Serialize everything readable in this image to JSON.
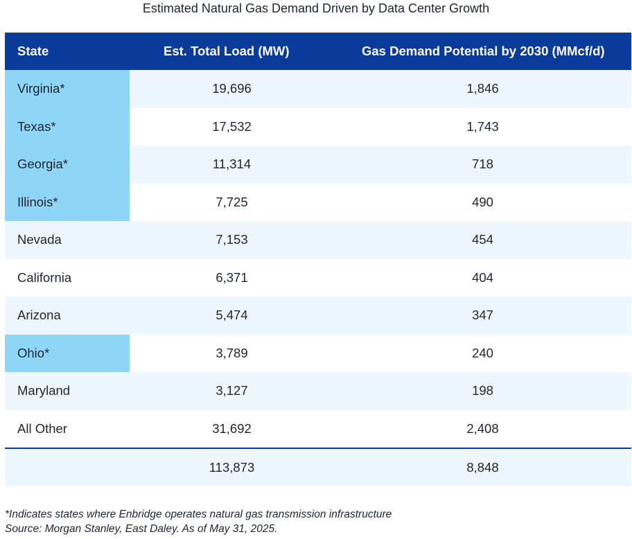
{
  "chart_data": {
    "type": "table",
    "title": "Estimated Natural Gas Demand Driven by Data Center Growth",
    "columns": [
      "State",
      "Est. Total Load (MW)",
      "Gas Demand Potential by 2030 (MMcf/d)"
    ],
    "rows": [
      {
        "state": "Virginia*",
        "load": "19,696",
        "gas": "1,846",
        "highlight": true
      },
      {
        "state": "Texas*",
        "load": "17,532",
        "gas": "1,743",
        "highlight": true
      },
      {
        "state": "Georgia*",
        "load": "11,314",
        "gas": "718",
        "highlight": true
      },
      {
        "state": "Illinois*",
        "load": "7,725",
        "gas": "490",
        "highlight": true
      },
      {
        "state": "Nevada",
        "load": "7,153",
        "gas": "454",
        "highlight": false
      },
      {
        "state": "California",
        "load": "6,371",
        "gas": "404",
        "highlight": false
      },
      {
        "state": "Arizona",
        "load": "5,474",
        "gas": "347",
        "highlight": false
      },
      {
        "state": "Ohio*",
        "load": "3,789",
        "gas": "240",
        "highlight": true
      },
      {
        "state": "Maryland",
        "load": "3,127",
        "gas": "198",
        "highlight": false
      },
      {
        "state": "All Other",
        "load": "31,692",
        "gas": "2,408",
        "highlight": false
      }
    ],
    "total": {
      "state": "",
      "load": "113,873",
      "gas": "8,848"
    },
    "footnotes": [
      "*Indicates states where Enbridge operates natural gas transmission infrastructure",
      "Source: Morgan Stanley, East Daley. As of May 31, 2025."
    ]
  },
  "colors": {
    "header_bg": "#0a3a9a",
    "highlight": "#8fd6f6",
    "stripe": "#eef7fd"
  }
}
